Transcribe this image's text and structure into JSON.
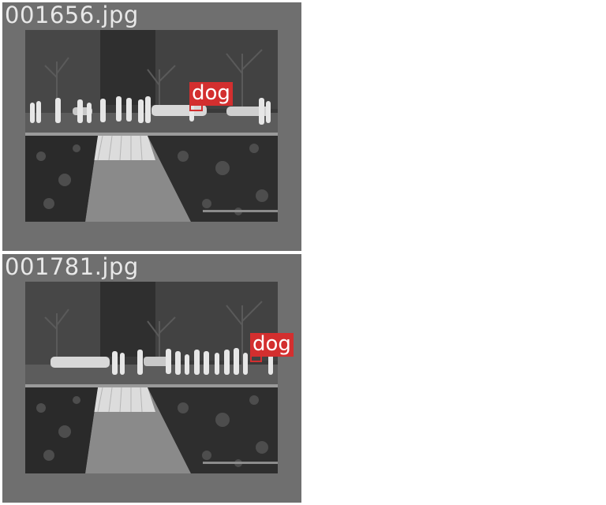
{
  "panels": [
    {
      "filename": "001656.jpg",
      "detection": {
        "label": "dog"
      }
    },
    {
      "filename": "001781.jpg",
      "detection": {
        "label": "dog"
      }
    }
  ],
  "colors": {
    "panel_background": "#6f6f6f",
    "detection_box": "#d32f2f",
    "label_text": "#ffffff",
    "filename_text": "#e8e8e8"
  }
}
